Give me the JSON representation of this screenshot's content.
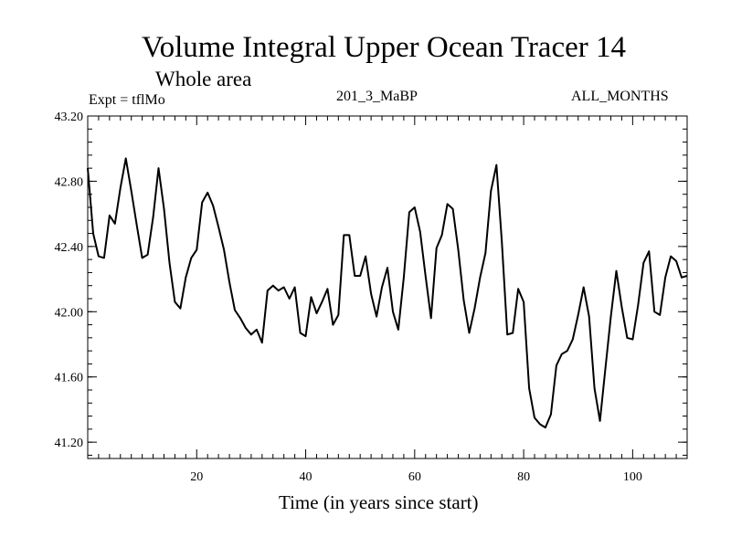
{
  "chart_data": {
    "type": "line",
    "title": "Volume Integral Upper Ocean Tracer 14",
    "subtitle": "Whole area",
    "expt_label": "Expt = tflMo",
    "run_label": "201_3_MaBP",
    "period_label": "ALL_MONTHS",
    "xlabel": "Time (in years since start)",
    "ylabel": "",
    "xlim": [
      0,
      110
    ],
    "ylim": [
      41.1,
      43.2
    ],
    "x_ticks": [
      20,
      40,
      60,
      80,
      100
    ],
    "y_ticks": [
      41.2,
      41.6,
      42.0,
      42.4,
      42.8,
      43.2
    ],
    "y_tick_labels": [
      "41.20",
      "41.60",
      "42.00",
      "42.40",
      "42.80",
      "43.20"
    ],
    "series": [
      {
        "name": "Upper Ocean Tracer 14",
        "x": [
          0,
          1,
          2,
          3,
          4,
          5,
          6,
          7,
          8,
          9,
          10,
          11,
          12,
          13,
          14,
          15,
          16,
          17,
          18,
          19,
          20,
          21,
          22,
          23,
          24,
          25,
          26,
          27,
          28,
          29,
          30,
          31,
          32,
          33,
          34,
          35,
          36,
          37,
          38,
          39,
          40,
          41,
          42,
          43,
          44,
          45,
          46,
          47,
          48,
          49,
          50,
          51,
          52,
          53,
          54,
          55,
          56,
          57,
          58,
          59,
          60,
          61,
          62,
          63,
          64,
          65,
          66,
          67,
          68,
          69,
          70,
          71,
          72,
          73,
          74,
          75,
          76,
          77,
          78,
          79,
          80,
          81,
          82,
          83,
          84,
          85,
          86,
          87,
          88,
          89,
          90,
          91,
          92,
          93,
          94,
          95,
          96,
          97,
          98,
          99,
          100,
          101,
          102,
          103,
          104,
          105,
          106,
          107,
          108,
          109,
          110
        ],
        "values": [
          42.88,
          42.48,
          42.34,
          42.33,
          42.59,
          42.54,
          42.76,
          42.94,
          42.74,
          42.53,
          42.33,
          42.35,
          42.58,
          42.88,
          42.63,
          42.3,
          42.06,
          42.02,
          42.21,
          42.33,
          42.38,
          42.67,
          42.73,
          42.65,
          42.52,
          42.38,
          42.18,
          42.01,
          41.96,
          41.9,
          41.86,
          41.89,
          41.81,
          42.13,
          42.16,
          42.13,
          42.15,
          42.08,
          42.15,
          41.87,
          41.85,
          42.09,
          41.99,
          42.06,
          42.14,
          41.92,
          41.98,
          42.47,
          42.47,
          42.22,
          42.22,
          42.34,
          42.11,
          41.97,
          42.15,
          42.27,
          42.0,
          41.89,
          42.21,
          42.61,
          42.64,
          42.49,
          42.22,
          41.96,
          42.39,
          42.47,
          42.66,
          42.63,
          42.38,
          42.07,
          41.87,
          42.02,
          42.21,
          42.36,
          42.74,
          42.9,
          42.43,
          41.86,
          41.87,
          42.14,
          42.06,
          41.53,
          41.35,
          41.31,
          41.29,
          41.37,
          41.67,
          41.74,
          41.76,
          41.83,
          41.98,
          42.15,
          41.97,
          41.53,
          41.33,
          41.65,
          41.97,
          42.25,
          42.03,
          41.84,
          41.83,
          42.04,
          42.3,
          42.37,
          42.0,
          41.98,
          42.21,
          42.34,
          42.31,
          42.21,
          42.22
        ]
      }
    ]
  }
}
